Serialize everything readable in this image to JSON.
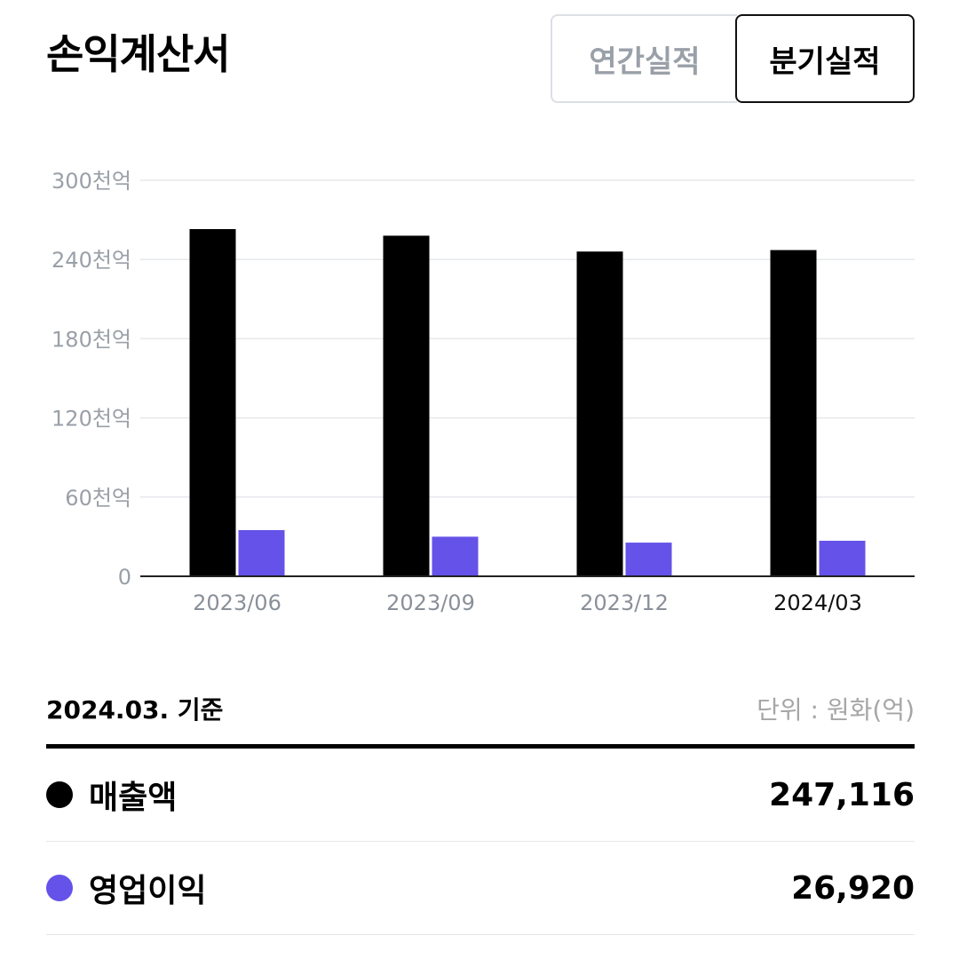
{
  "header": {
    "title": "손익계산서",
    "tabs": [
      {
        "label": "연간실적",
        "active": false
      },
      {
        "label": "분기실적",
        "active": true
      }
    ]
  },
  "colors": {
    "revenue": "#000000",
    "operating_income": "#6552e8"
  },
  "chart_data": {
    "type": "bar",
    "categories": [
      "2023/06",
      "2023/09",
      "2023/12",
      "2024/03"
    ],
    "selected_category": "2024/03",
    "series": [
      {
        "name": "매출액",
        "color": "#000000",
        "values": [
          263000,
          258000,
          246000,
          247116
        ]
      },
      {
        "name": "영업이익",
        "color": "#6552e8",
        "values": [
          35000,
          30000,
          25500,
          26920
        ]
      }
    ],
    "ylim": [
      0,
      300000
    ],
    "yticks": [
      0,
      60000,
      120000,
      180000,
      240000,
      300000
    ],
    "ytick_labels": [
      "0",
      "60천억",
      "120천억",
      "180천억",
      "240천억",
      "300천억"
    ],
    "grid": true,
    "legend": "none"
  },
  "summary": {
    "basis": "2024.03. 기준",
    "unit": "단위 : 원화(억)",
    "rows": [
      {
        "label": "매출액",
        "value": "247,116",
        "color": "#000000"
      },
      {
        "label": "영업이익",
        "value": "26,920",
        "color": "#6552e8"
      }
    ]
  }
}
